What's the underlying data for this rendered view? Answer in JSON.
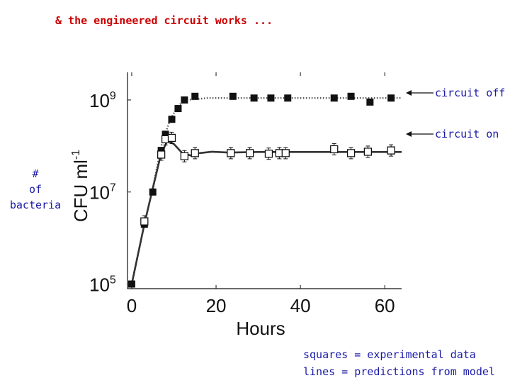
{
  "slide": {
    "title": "& the engineered circuit works ...",
    "side_label_lines": [
      "#",
      "of",
      "bacteria"
    ],
    "notes": [
      "squares = experimental data",
      "lines = predictions from model"
    ]
  },
  "chart_data": {
    "type": "scatter",
    "xlabel": "Hours",
    "ylabel": "CFU ml",
    "ylabel_superscript": "-1",
    "x_ticks": [
      0,
      20,
      40,
      60
    ],
    "y_ticks": [
      {
        "base": "10",
        "exp": "5",
        "value": 100000
      },
      {
        "base": "10",
        "exp": "7",
        "value": 10000000
      },
      {
        "base": "10",
        "exp": "9",
        "value": 1000000000
      }
    ],
    "xlim": [
      -1,
      64
    ],
    "y_log_range": [
      4.9,
      9.6
    ],
    "y_scale": "log",
    "series": [
      {
        "name": "circuit off",
        "marker": "filled-square",
        "line": "dotted",
        "points": [
          [
            0,
            100000
          ],
          [
            3,
            2000000
          ],
          [
            5,
            10000000
          ],
          [
            7,
            80000000
          ],
          [
            8,
            180000000
          ],
          [
            9.5,
            380000000
          ],
          [
            11,
            650000000
          ],
          [
            12.5,
            1000000000
          ],
          [
            15,
            1200000000
          ],
          [
            24,
            1200000000
          ],
          [
            29,
            1100000000
          ],
          [
            33,
            1100000000
          ],
          [
            37,
            1100000000
          ],
          [
            48,
            1100000000
          ],
          [
            52,
            1200000000
          ],
          [
            56.5,
            900000000
          ],
          [
            61.5,
            1100000000
          ]
        ],
        "model": [
          [
            0,
            100000
          ],
          [
            3,
            2000000
          ],
          [
            5,
            12000000
          ],
          [
            7,
            100000000
          ],
          [
            9,
            350000000
          ],
          [
            11,
            750000000
          ],
          [
            13,
            1000000000
          ],
          [
            18,
            1100000000
          ],
          [
            30,
            1100000000
          ],
          [
            45,
            1100000000
          ],
          [
            64,
            1100000000
          ]
        ]
      },
      {
        "name": "circuit on",
        "marker": "open-square",
        "line": "solid",
        "points": [
          [
            3,
            2300000
          ],
          [
            7,
            65000000
          ],
          [
            8,
            140000000
          ],
          [
            9.5,
            150000000
          ],
          [
            12.5,
            60000000
          ],
          [
            15,
            70000000
          ],
          [
            23.5,
            70000000
          ],
          [
            28,
            70000000
          ],
          [
            32.5,
            68000000
          ],
          [
            35,
            70000000
          ],
          [
            36.5,
            70000000
          ],
          [
            48,
            85000000
          ],
          [
            52,
            70000000
          ],
          [
            56,
            75000000
          ],
          [
            61.5,
            80000000
          ]
        ],
        "model": [
          [
            0,
            100000
          ],
          [
            3,
            2000000
          ],
          [
            5,
            12000000
          ],
          [
            7,
            70000000
          ],
          [
            8.5,
            130000000
          ],
          [
            10,
            110000000
          ],
          [
            12,
            70000000
          ],
          [
            14,
            62000000
          ],
          [
            16,
            70000000
          ],
          [
            19,
            75000000
          ],
          [
            23,
            72000000
          ],
          [
            30,
            74000000
          ],
          [
            45,
            74000000
          ],
          [
            64,
            74000000
          ]
        ]
      }
    ],
    "annotations": [
      {
        "text": "circuit off",
        "series": "circuit off"
      },
      {
        "text": "circuit on",
        "series": "circuit on"
      }
    ],
    "colors": {
      "markers": "#111111",
      "text_accent": "#1a1aa8",
      "title_accent": "#cc0000"
    }
  }
}
